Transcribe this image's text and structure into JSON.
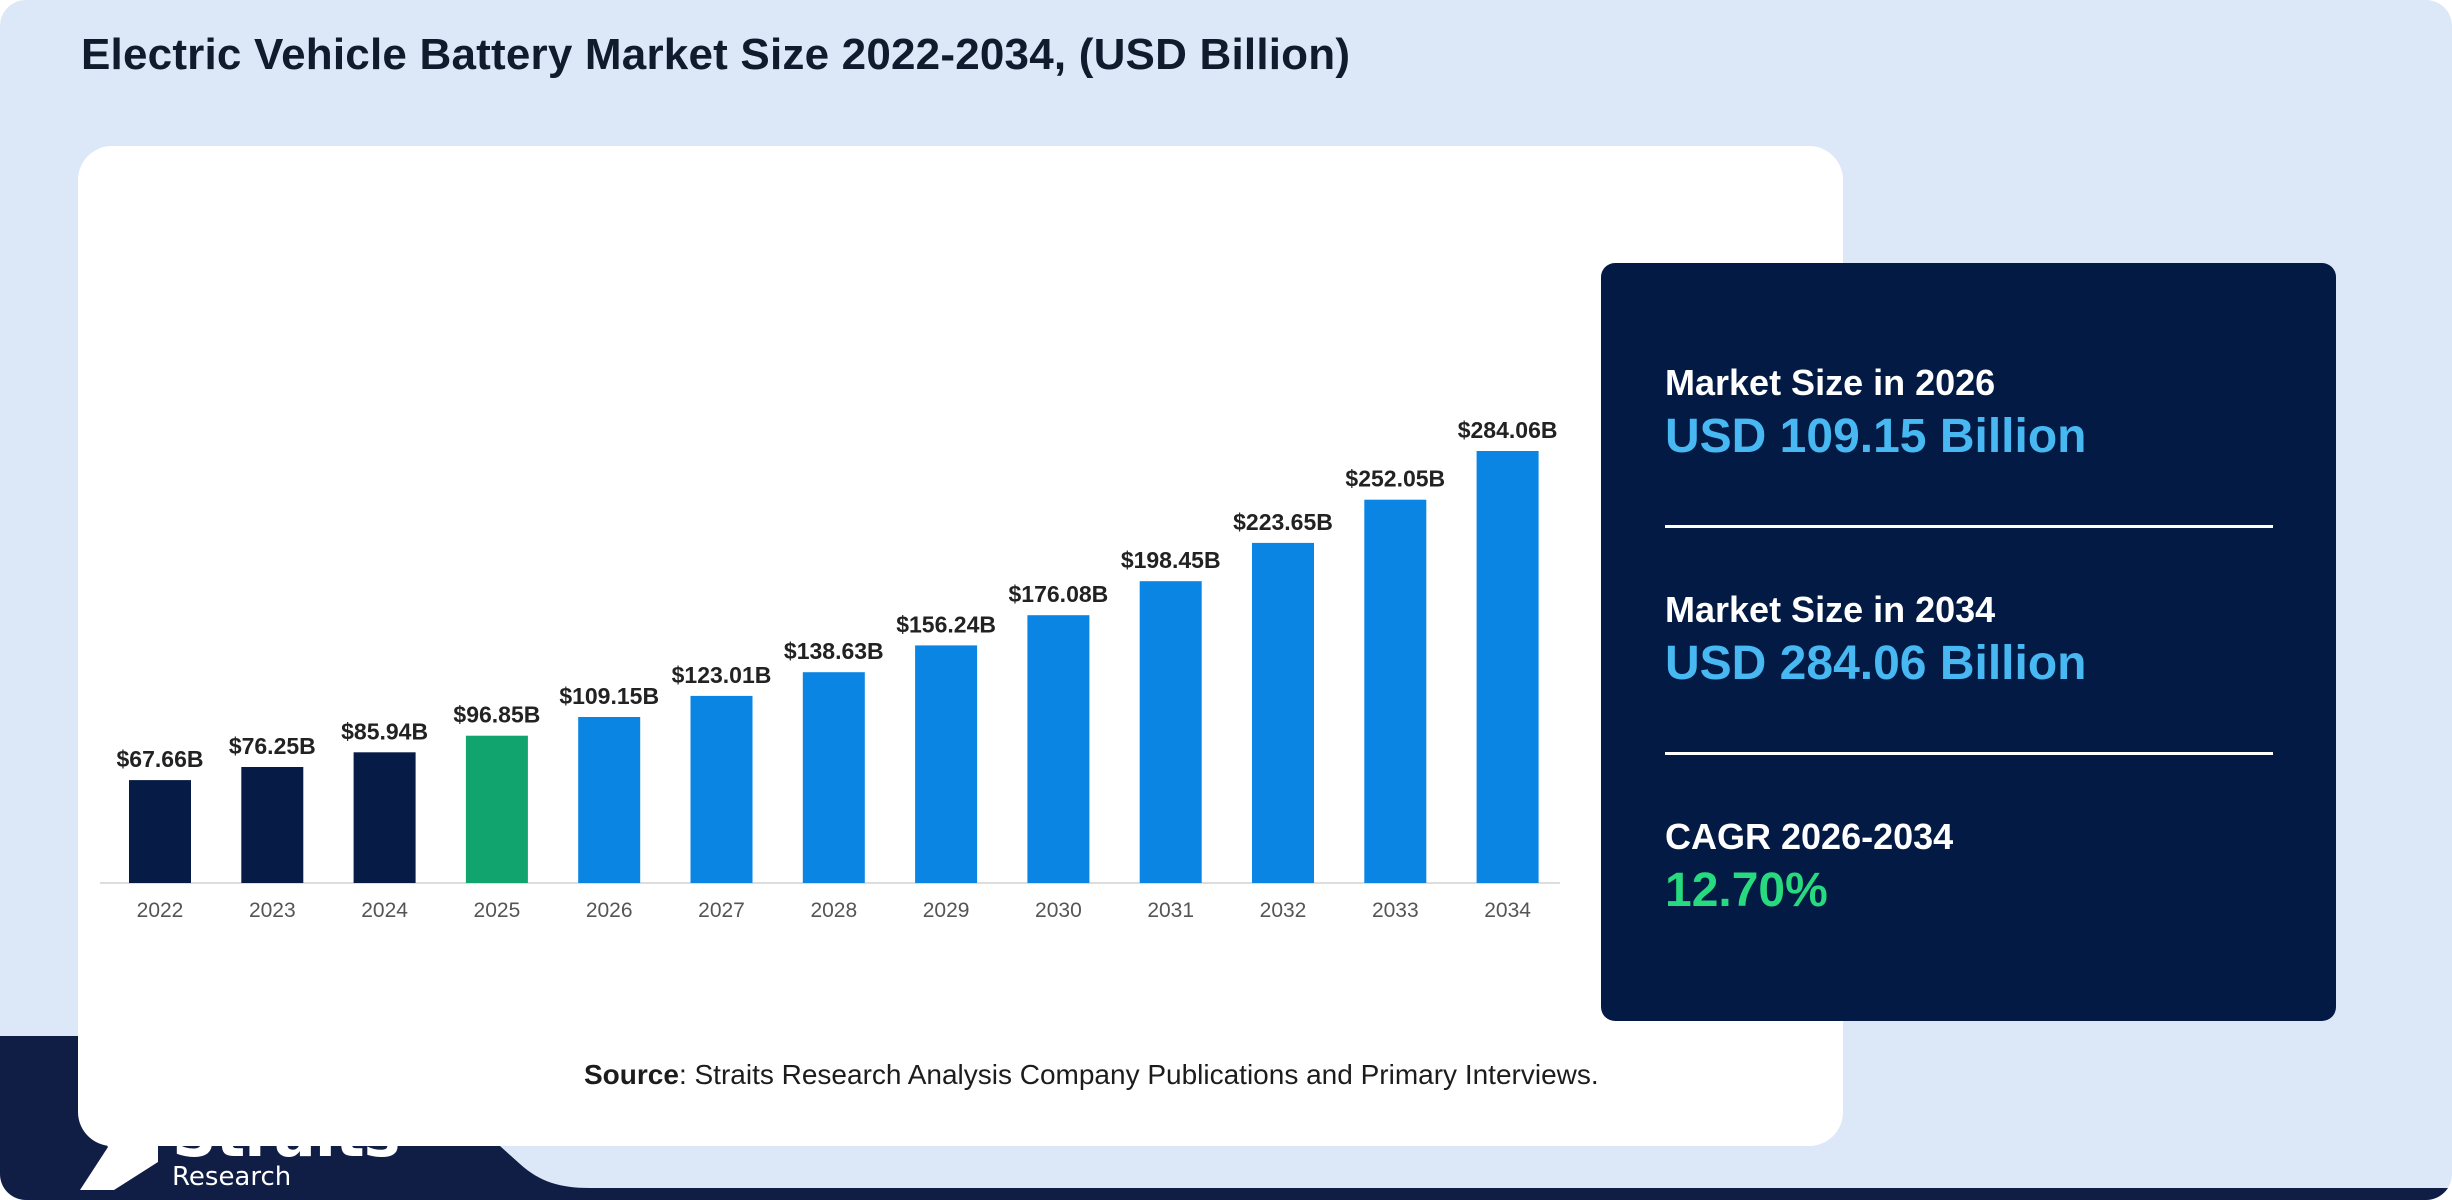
{
  "title": "Electric Vehicle Battery Market Size 2022-2034, (USD Billion)",
  "colors": {
    "background": "#dce8f8",
    "historical_bar": "#061c46",
    "base_year_bar": "#12a46f",
    "forecast_bar": "#0b85e3",
    "panel": "#031b44",
    "stat_value_blue": "#47b8f2",
    "stat_value_green": "#27d97f",
    "footer_band": "#101e45"
  },
  "chart_data": {
    "type": "bar",
    "title": "Electric Vehicle Battery Market Size 2022-2034, (USD Billion)",
    "xlabel": "",
    "ylabel": "",
    "categories": [
      "2022",
      "2023",
      "2024",
      "2025",
      "2026",
      "2027",
      "2028",
      "2029",
      "2030",
      "2031",
      "2032",
      "2033",
      "2034"
    ],
    "values": [
      67.66,
      76.25,
      85.94,
      96.85,
      109.15,
      123.01,
      138.63,
      156.24,
      176.08,
      198.45,
      223.65,
      252.05,
      284.06
    ],
    "value_labels": [
      "$67.66B",
      "$76.25B",
      "$85.94B",
      "$96.85B",
      "$109.15B",
      "$123.01B",
      "$138.63B",
      "$156.24B",
      "$176.08B",
      "$198.45B",
      "$223.65B",
      "$252.05B",
      "$284.06B"
    ],
    "bar_kinds": [
      "historical",
      "historical",
      "historical",
      "base",
      "forecast",
      "forecast",
      "forecast",
      "forecast",
      "forecast",
      "forecast",
      "forecast",
      "forecast",
      "forecast"
    ],
    "ylim": [
      0,
      284.06
    ],
    "grid": false,
    "legend": "none"
  },
  "stats": [
    {
      "label": "Market Size in 2026",
      "value": "USD 109.15 Billion",
      "color": "#47b8f2"
    },
    {
      "label": "Market Size in 2034",
      "value": "USD 284.06 Billion",
      "color": "#47b8f2"
    },
    {
      "label": "CAGR 2026-2034",
      "value": "12.70%",
      "color": "#27d97f"
    }
  ],
  "source": {
    "label": "Source",
    "text": ": Straits Research Analysis Company Publications and Primary Interviews."
  },
  "logo": {
    "name": "Straits",
    "sub": "Research"
  }
}
